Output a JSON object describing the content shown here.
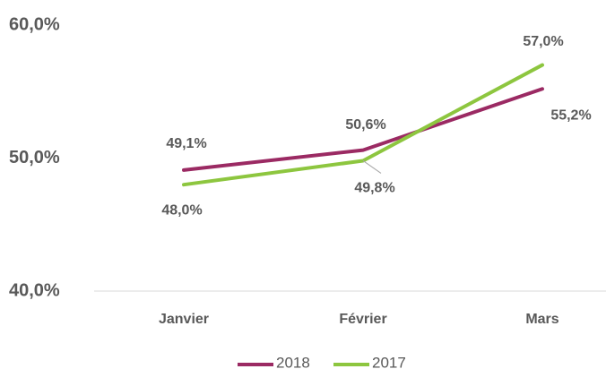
{
  "chart_data": {
    "type": "line",
    "categories": [
      "Janvier",
      "Février",
      "Mars"
    ],
    "series": [
      {
        "name": "2018",
        "color": "#9b2a63",
        "values": [
          49.1,
          50.6,
          55.2
        ],
        "value_labels": [
          "49,1%",
          "50,6%",
          "55,2%"
        ]
      },
      {
        "name": "2017",
        "color": "#8dc63f",
        "values": [
          48.0,
          49.8,
          57.0
        ],
        "value_labels": [
          "48,0%",
          "49,8%",
          "57,0%"
        ]
      }
    ],
    "ylim": [
      40,
      60
    ],
    "yticks": [
      {
        "value": 40,
        "label": "40,0%"
      },
      {
        "value": 50,
        "label": "50,0%"
      },
      {
        "value": 60,
        "label": "60,0%"
      }
    ],
    "legend": "bottom"
  }
}
